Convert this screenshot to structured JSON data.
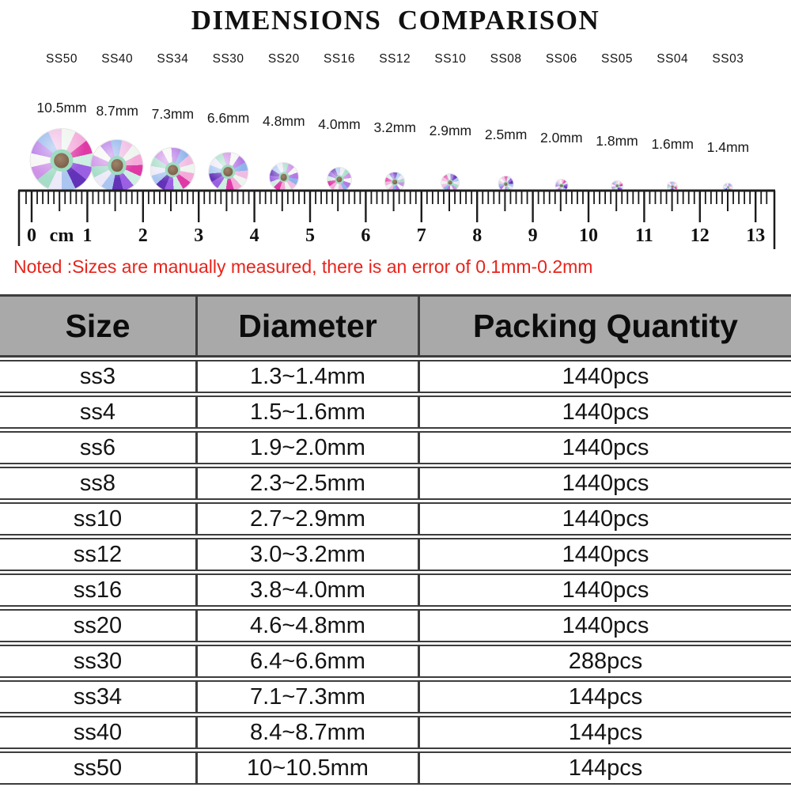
{
  "title": "DIMENSIONS  COMPARISON",
  "note": "Noted :Sizes are manually measured, there is an error of 0.1mm-0.2mm",
  "comparison": {
    "items": [
      {
        "size": "SS50",
        "mm_label": "10.5mm",
        "mm": 10.5
      },
      {
        "size": "SS40",
        "mm_label": "8.7mm",
        "mm": 8.7
      },
      {
        "size": "SS34",
        "mm_label": "7.3mm",
        "mm": 7.3
      },
      {
        "size": "SS30",
        "mm_label": "6.6mm",
        "mm": 6.6
      },
      {
        "size": "SS20",
        "mm_label": "4.8mm",
        "mm": 4.8
      },
      {
        "size": "SS16",
        "mm_label": "4.0mm",
        "mm": 4.0
      },
      {
        "size": "SS12",
        "mm_label": "3.2mm",
        "mm": 3.2
      },
      {
        "size": "SS10",
        "mm_label": "2.9mm",
        "mm": 2.9
      },
      {
        "size": "SS08",
        "mm_label": "2.5mm",
        "mm": 2.5
      },
      {
        "size": "SS06",
        "mm_label": "2.0mm",
        "mm": 2.0
      },
      {
        "size": "SS05",
        "mm_label": "1.8mm",
        "mm": 1.8
      },
      {
        "size": "SS04",
        "mm_label": "1.6mm",
        "mm": 1.6
      },
      {
        "size": "SS03",
        "mm_label": "1.4mm",
        "mm": 1.4
      }
    ]
  },
  "ruler": {
    "unit_label": "cm",
    "numbers": [
      "0",
      "1",
      "2",
      "3",
      "4",
      "5",
      "6",
      "7",
      "8",
      "9",
      "10",
      "11",
      "12",
      "13"
    ]
  },
  "table": {
    "headers": [
      "Size",
      "Diameter",
      "Packing Quantity"
    ],
    "rows": [
      {
        "size": "ss3",
        "diameter": "1.3~1.4mm",
        "quantity": "1440pcs"
      },
      {
        "size": "ss4",
        "diameter": "1.5~1.6mm",
        "quantity": "1440pcs"
      },
      {
        "size": "ss6",
        "diameter": "1.9~2.0mm",
        "quantity": "1440pcs"
      },
      {
        "size": "ss8",
        "diameter": "2.3~2.5mm",
        "quantity": "1440pcs"
      },
      {
        "size": "ss10",
        "diameter": "2.7~2.9mm",
        "quantity": "1440pcs"
      },
      {
        "size": "ss12",
        "diameter": "3.0~3.2mm",
        "quantity": "1440pcs"
      },
      {
        "size": "ss16",
        "diameter": "3.8~4.0mm",
        "quantity": "1440pcs"
      },
      {
        "size": "ss20",
        "diameter": "4.6~4.8mm",
        "quantity": "1440pcs"
      },
      {
        "size": "ss30",
        "diameter": "6.4~6.6mm",
        "quantity": "288pcs"
      },
      {
        "size": "ss34",
        "diameter": "7.1~7.3mm",
        "quantity": "144pcs"
      },
      {
        "size": "ss40",
        "diameter": "8.4~8.7mm",
        "quantity": "144pcs"
      },
      {
        "size": "ss50",
        "diameter": "10~10.5mm",
        "quantity": "144pcs"
      }
    ]
  },
  "colors": {
    "note_red": "#e8231b",
    "table_header_bg": "#a9a9a9",
    "grid_line": "#3d3d3d",
    "title_black": "#111111",
    "stone_core": "#8a6f5c",
    "stone_ring": "#9edcc0",
    "stone_facets": [
      "#eef4ee",
      "#f4a9da",
      "#df39a6",
      "#cdeee2",
      "#9a5fe2",
      "#6232b8",
      "#aac6f0",
      "#ece9f8",
      "#a6dcc8",
      "#ce92e8",
      "#f6f6f4",
      "#b579e6",
      "#8fb3ea",
      "#f0bce4"
    ]
  }
}
